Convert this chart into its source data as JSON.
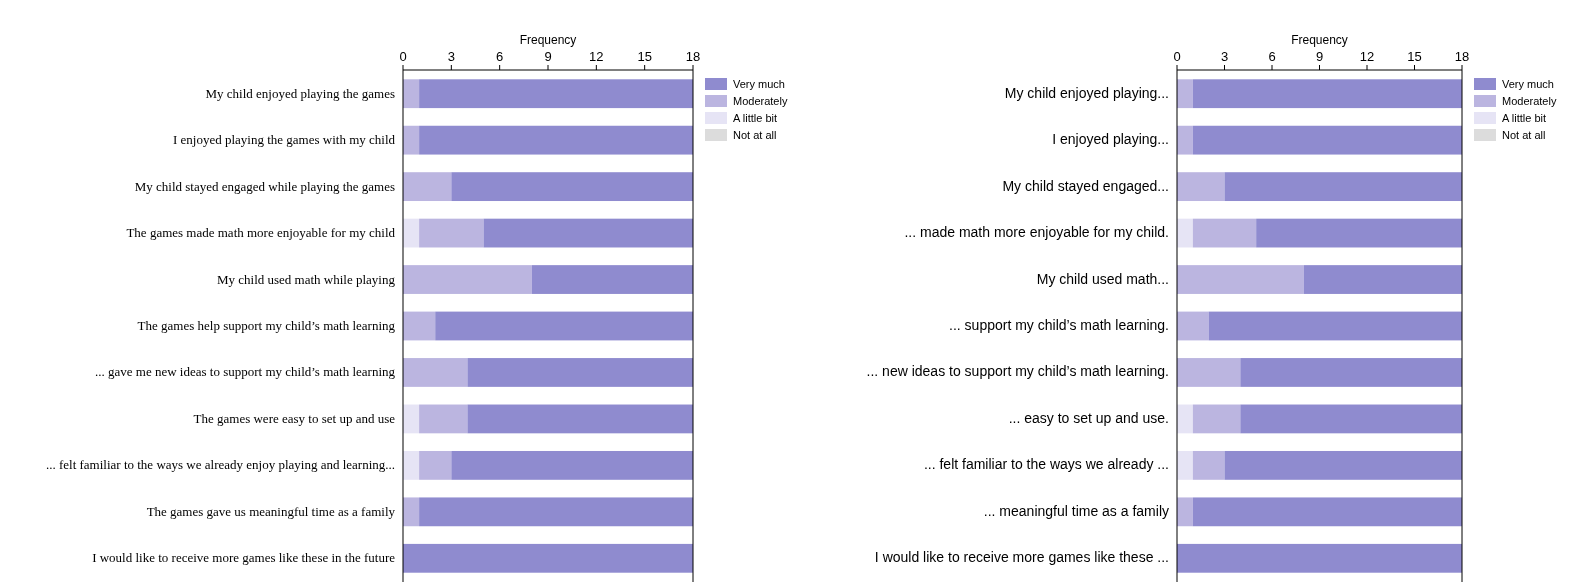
{
  "chart_data": [
    {
      "type": "bar",
      "orientation": "horizontal",
      "stacked": true,
      "xlabel": "Frequency",
      "xlim": [
        0,
        18
      ],
      "xticks": [
        0,
        3,
        6,
        9,
        12,
        15,
        18
      ],
      "legend": "top right",
      "categories": [
        "My child enjoyed playing the games",
        "I enjoyed playing the games with my child",
        "My child stayed engaged while playing the games",
        "The games made math more enjoyable for my child",
        "My child used math while playing",
        "The games help support my child’s math learning",
        "... gave me new ideas to support my child’s math learning",
        "The games were easy to set up and use",
        "... felt familiar to the ways we already enjoy playing and learning...",
        "The games gave us meaningful time as a family",
        "I would like to receive more games like these in the future"
      ],
      "series": [
        {
          "name": "Not at all",
          "color": "#dcdcdc",
          "values": [
            0,
            0,
            0,
            0,
            0,
            0,
            0,
            0,
            0,
            0,
            0
          ]
        },
        {
          "name": "A little bit",
          "color": "#e6e4f5",
          "values": [
            0,
            0,
            0,
            1,
            0,
            0,
            0,
            1,
            1,
            0,
            0
          ]
        },
        {
          "name": "Moderately",
          "color": "#bbb5e0",
          "values": [
            1,
            1,
            3,
            4,
            8,
            2,
            4,
            3,
            2,
            1,
            0
          ]
        },
        {
          "name": "Very much",
          "color": "#8f8bcf",
          "values": [
            17,
            17,
            15,
            13,
            10,
            16,
            14,
            14,
            15,
            17,
            18
          ]
        }
      ]
    },
    {
      "type": "bar",
      "orientation": "horizontal",
      "stacked": true,
      "xlabel": "Frequency",
      "xlim": [
        0,
        18
      ],
      "xticks": [
        0,
        3,
        6,
        9,
        12,
        15,
        18
      ],
      "legend": "top right",
      "categories": [
        "My child enjoyed playing...",
        "I enjoyed playing...",
        "My child stayed engaged...",
        "... made math more enjoyable for my child.",
        "My child used math...",
        "... support my child’s math learning.",
        "... new ideas to support my child’s math learning.",
        "... easy to set up and use.",
        "... felt familiar to the ways we already ...",
        "... meaningful time as a family",
        "I would like to receive more games like these ..."
      ],
      "series": [
        {
          "name": "Not at all",
          "color": "#dcdcdc",
          "values": [
            0,
            0,
            0,
            0,
            0,
            0,
            0,
            0,
            0,
            0,
            0
          ]
        },
        {
          "name": "A little bit",
          "color": "#e6e4f5",
          "values": [
            0,
            0,
            0,
            1,
            0,
            0,
            0,
            1,
            1,
            0,
            0
          ]
        },
        {
          "name": "Moderately",
          "color": "#bbb5e0",
          "values": [
            1,
            1,
            3,
            4,
            8,
            2,
            4,
            3,
            2,
            1,
            0
          ]
        },
        {
          "name": "Very much",
          "color": "#8f8bcf",
          "values": [
            17,
            17,
            15,
            13,
            10,
            16,
            14,
            14,
            15,
            17,
            18
          ]
        }
      ]
    }
  ]
}
